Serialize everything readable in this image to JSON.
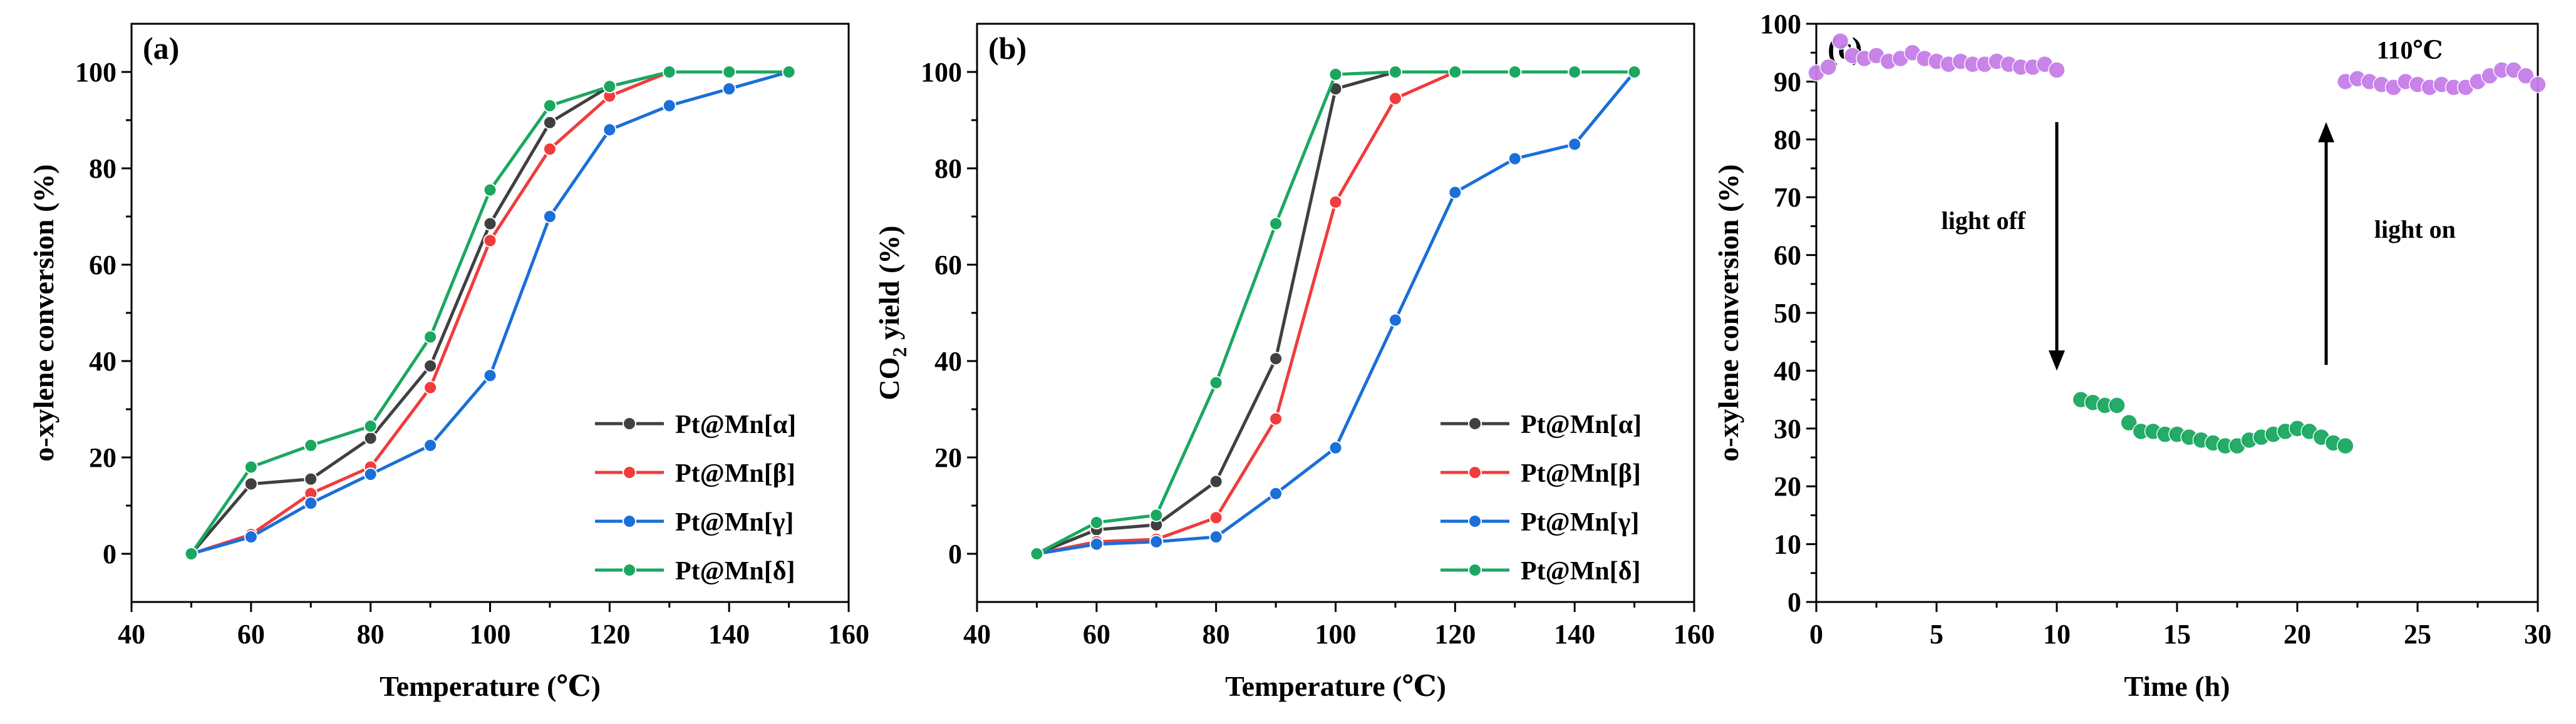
{
  "chart_data": [
    {
      "type": "line",
      "panel_label": "(a)",
      "xlabel": "Temperature (℃)",
      "ylabel": "o-xylene conversion (%)",
      "xlim": [
        40,
        160
      ],
      "ylim": [
        -10,
        110
      ],
      "xticks": [
        40,
        60,
        80,
        100,
        120,
        140,
        160
      ],
      "yticks": [
        0,
        20,
        40,
        60,
        80,
        100
      ],
      "legend_position": "bottom-right",
      "x": [
        50,
        60,
        70,
        80,
        90,
        100,
        110,
        120,
        130,
        140,
        150
      ],
      "series": [
        {
          "name": "Pt@Mn[α]",
          "color": "#404040",
          "values": [
            0,
            14.5,
            15.5,
            24,
            39,
            68.5,
            89.5,
            97,
            100,
            100,
            100
          ]
        },
        {
          "name": "Pt@Mn[β]",
          "color": "#f03c3c",
          "values": [
            0,
            4,
            12.5,
            18,
            34.5,
            65,
            84,
            95,
            100,
            100,
            100
          ]
        },
        {
          "name": "Pt@Mn[γ]",
          "color": "#1a6fd8",
          "values": [
            0,
            3.5,
            10.5,
            16.5,
            22.5,
            37,
            70,
            88,
            93,
            96.5,
            100
          ]
        },
        {
          "name": "Pt@Mn[δ]",
          "color": "#1aa860",
          "values": [
            0,
            18,
            22.5,
            26.5,
            45,
            75.5,
            93,
            97,
            100,
            100,
            100
          ]
        }
      ]
    },
    {
      "type": "line",
      "panel_label": "(b)",
      "xlabel": "Temperature (℃)",
      "ylabel": "CO",
      "ylabel_sub": "2",
      "ylabel_rest": " yield (%)",
      "xlim": [
        40,
        160
      ],
      "ylim": [
        -10,
        110
      ],
      "xticks": [
        40,
        60,
        80,
        100,
        120,
        140,
        160
      ],
      "yticks": [
        0,
        20,
        40,
        60,
        80,
        100
      ],
      "legend_position": "bottom-right",
      "x": [
        50,
        60,
        70,
        80,
        90,
        100,
        110,
        120,
        130,
        140,
        150
      ],
      "series": [
        {
          "name": "Pt@Mn[α]",
          "color": "#404040",
          "values": [
            0,
            5,
            6,
            15,
            40.5,
            96.5,
            100,
            100,
            100,
            100,
            100
          ]
        },
        {
          "name": "Pt@Mn[β]",
          "color": "#f03c3c",
          "values": [
            0,
            2.5,
            3,
            7.5,
            28,
            73,
            94.5,
            100,
            100,
            100,
            100
          ]
        },
        {
          "name": "Pt@Mn[γ]",
          "color": "#1a6fd8",
          "values": [
            0,
            2,
            2.5,
            3.5,
            12.5,
            22,
            48.5,
            75,
            82,
            85,
            100
          ]
        },
        {
          "name": "Pt@Mn[δ]",
          "color": "#1aa860",
          "values": [
            0,
            6.5,
            8,
            35.5,
            68.5,
            99.5,
            100,
            100,
            100,
            100,
            100
          ]
        }
      ]
    },
    {
      "type": "scatter",
      "panel_label": "(c)",
      "xlabel": "Time (h)",
      "ylabel": "o-xylene conversion (%)",
      "xlim": [
        0,
        30
      ],
      "ylim": [
        0,
        100
      ],
      "xticks": [
        0,
        5,
        10,
        15,
        20,
        25,
        30
      ],
      "yticks": [
        0,
        10,
        20,
        30,
        40,
        50,
        60,
        70,
        80,
        90,
        100
      ],
      "annotations": {
        "temperature": "110℃",
        "light_off": "light off",
        "light_on": "light on"
      },
      "series": [
        {
          "color": "#c77ee8",
          "x": [
            0,
            0.5,
            1,
            1.5,
            2,
            2.5,
            3,
            3.5,
            4,
            4.5,
            5,
            5.5,
            6,
            6.5,
            7,
            7.5,
            8,
            8.5,
            9,
            9.5,
            10
          ],
          "y": [
            91.5,
            92.5,
            97,
            94.5,
            94,
            94.5,
            93.5,
            94,
            95,
            94,
            93.5,
            93,
            93.5,
            93,
            93,
            93.5,
            93,
            92.5,
            92.5,
            93,
            92
          ]
        },
        {
          "color": "#1aa860",
          "x": [
            11,
            11.5,
            12,
            12.5,
            13,
            13.5,
            14,
            14.5,
            15,
            15.5,
            16,
            16.5,
            17,
            17.5,
            18,
            18.5,
            19,
            19.5,
            20,
            20.5,
            21,
            21.5,
            22
          ],
          "y": [
            35,
            34.5,
            34,
            34,
            31,
            29.5,
            29.5,
            29,
            29,
            28.5,
            28,
            27.5,
            27,
            27,
            28,
            28.5,
            29,
            29.5,
            30,
            29.5,
            28.5,
            27.5,
            27
          ]
        },
        {
          "color": "#c77ee8",
          "x": [
            22,
            22.5,
            23,
            23.5,
            24,
            24.5,
            25,
            25.5,
            26,
            26.5,
            27,
            27.5,
            28,
            28.5,
            29,
            29.5,
            30
          ],
          "y": [
            90,
            90.5,
            90,
            89.5,
            89,
            90,
            89.5,
            89,
            89.5,
            89,
            89,
            90,
            91,
            92,
            92,
            91,
            89.5
          ]
        }
      ]
    }
  ]
}
